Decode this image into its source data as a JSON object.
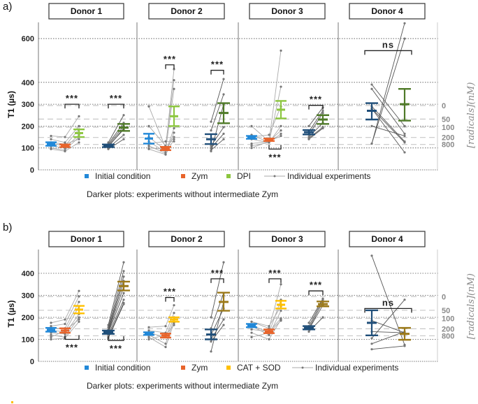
{
  "chart_data": [
    {
      "type": "scatter",
      "panel_label": "a)",
      "ylabel": "T1 (µs)",
      "ylim": [
        0,
        650
      ],
      "yticks": [
        0,
        100,
        200,
        300,
        400,
        600
      ],
      "right_axis_label": "[radicals](nM)",
      "right_axis_ticks": [
        {
          "label": "0",
          "t1": 294
        },
        {
          "label": "50",
          "t1": 232
        },
        {
          "label": "100",
          "t1": 195
        },
        {
          "label": "200",
          "t1": 148
        },
        {
          "label": "800",
          "t1": 116
        }
      ],
      "legend": {
        "initial": "Initial condition",
        "zym": "Zym",
        "treatment": "DPI",
        "individual": "Individual experiments"
      },
      "caption": "Darker plots: experiments without intermediate Zym",
      "colors": {
        "initial": "#2188d8",
        "zym": "#e8642b",
        "treatment": "#8cc63f",
        "initial_dark": "#1f4e79",
        "treatment_dark": "#4f7a28",
        "individual": "#9a9a9a"
      },
      "donors": [
        {
          "name": "Donor 1",
          "groups": [
            {
              "cond": "initial",
              "mean": 118,
              "low": 110,
              "high": 126
            },
            {
              "cond": "zym",
              "mean": 110,
              "low": 104,
              "high": 116
            },
            {
              "cond": "treatment",
              "mean": 168,
              "low": 150,
              "high": 185
            },
            {
              "cond": "initial_dark",
              "mean": 110,
              "low": 104,
              "high": 116
            },
            {
              "cond": "treatment_dark",
              "mean": 193,
              "low": 178,
              "high": 210
            }
          ],
          "light_experiments": [
            [
              155,
              150,
              245
            ],
            [
              140,
              125,
              200
            ],
            [
              120,
              110,
              185
            ],
            [
              110,
              100,
              160
            ],
            [
              100,
              90,
              150
            ],
            [
              95,
              85,
              125
            ],
            [
              125,
              118,
              140
            ]
          ],
          "dark_experiments": [
            [
              125,
              250
            ],
            [
              118,
              215
            ],
            [
              112,
              200
            ],
            [
              108,
              185
            ],
            [
              100,
              160
            ],
            [
              95,
              140
            ],
            [
              105,
              190
            ]
          ],
          "sig": [
            {
              "from": 1,
              "to": 2,
              "at": 300,
              "side": "above",
              "label": "***"
            },
            {
              "from": 3,
              "to": 4,
              "at": 300,
              "side": "above",
              "label": "***"
            }
          ]
        },
        {
          "name": "Donor 2",
          "groups": [
            {
              "cond": "initial",
              "mean": 143,
              "low": 120,
              "high": 165
            },
            {
              "cond": "zym",
              "mean": 98,
              "low": 90,
              "high": 105
            },
            {
              "cond": "treatment",
              "mean": 245,
              "low": 200,
              "high": 290
            },
            {
              "cond": "initial_dark",
              "mean": 140,
              "low": 118,
              "high": 163
            },
            {
              "cond": "treatment_dark",
              "mean": 260,
              "low": 213,
              "high": 305
            }
          ],
          "light_experiments": [
            [
              290,
              100,
              460
            ],
            [
              200,
              110,
              410
            ],
            [
              150,
              90,
              370
            ],
            [
              130,
              80,
              190
            ],
            [
              110,
              75,
              170
            ],
            [
              95,
              70,
              140
            ],
            [
              100,
              95,
              150
            ],
            [
              120,
              130,
              130
            ]
          ],
          "dark_experiments": [
            [
              220,
              415
            ],
            [
              180,
              345
            ],
            [
              110,
              195
            ],
            [
              100,
              165
            ],
            [
              90,
              140
            ],
            [
              85,
              300
            ]
          ],
          "sig": [
            {
              "from": 1,
              "to": 2,
              "at": 480,
              "side": "above",
              "label": "***"
            },
            {
              "from": 3,
              "to": 4,
              "at": 455,
              "side": "above",
              "label": "***"
            }
          ]
        },
        {
          "name": "Donor 3",
          "groups": [
            {
              "cond": "initial",
              "mean": 148,
              "low": 142,
              "high": 155
            },
            {
              "cond": "zym",
              "mean": 137,
              "low": 132,
              "high": 143
            },
            {
              "cond": "treatment",
              "mean": 275,
              "low": 235,
              "high": 315
            },
            {
              "cond": "initial_dark",
              "mean": 172,
              "low": 162,
              "high": 182
            },
            {
              "cond": "treatment_dark",
              "mean": 230,
              "low": 210,
              "high": 250
            }
          ],
          "light_experiments": [
            [
              200,
              130,
              545
            ],
            [
              160,
              125,
              380
            ],
            [
              150,
              160,
              290
            ],
            [
              140,
              125,
              200
            ],
            [
              120,
              130,
              180
            ],
            [
              110,
              125,
              165
            ],
            [
              100,
              130,
              155
            ]
          ],
          "dark_experiments": [
            [
              200,
              285
            ],
            [
              175,
              270
            ],
            [
              160,
              260
            ],
            [
              150,
              215
            ],
            [
              145,
              195
            ],
            [
              140,
              190
            ]
          ],
          "sig": [
            {
              "from": 1,
              "to": 2,
              "at": 95,
              "side": "below",
              "label": "***"
            },
            {
              "from": 3,
              "to": 4,
              "at": 295,
              "side": "above",
              "label": "***"
            }
          ]
        },
        {
          "name": "Donor 4",
          "groups": [
            {
              "cond": "initial_dark",
              "mean": 270,
              "low": 230,
              "high": 305
            },
            {
              "cond": "treatment_dark",
              "mean": 300,
              "low": 225,
              "high": 370
            }
          ],
          "dark_experiments": [
            [
              390,
              200
            ],
            [
              370,
              165
            ],
            [
              290,
              130
            ],
            [
              280,
              125
            ],
            [
              200,
              155
            ],
            [
              120,
              600
            ],
            [
              120,
              670
            ],
            [
              280,
              80
            ]
          ],
          "sig": [
            {
              "from": 0,
              "to": 1,
              "at": 545,
              "side": "above",
              "label": "ns"
            }
          ]
        }
      ]
    },
    {
      "type": "scatter",
      "panel_label": "b)",
      "ylabel": "T1 (µs)",
      "ylim": [
        0,
        460
      ],
      "yticks": [
        0,
        100,
        200,
        300,
        400
      ],
      "right_axis_label": "[radicals](nM)",
      "right_axis_ticks": [
        {
          "label": "0",
          "t1": 294
        },
        {
          "label": "50",
          "t1": 232
        },
        {
          "label": "100",
          "t1": 195
        },
        {
          "label": "200",
          "t1": 148
        },
        {
          "label": "800",
          "t1": 116
        }
      ],
      "legend": {
        "initial": "Initial condition",
        "zym": "Zym",
        "treatment": "CAT + SOD",
        "individual": "Individual experiments"
      },
      "caption": "Darker plots: experiments without intermediate Zym",
      "colors": {
        "initial": "#2188d8",
        "zym": "#e8642b",
        "treatment": "#ffc000",
        "initial_dark": "#1f4e79",
        "treatment_dark": "#9c7a1a",
        "individual": "#9a9a9a"
      },
      "donors": [
        {
          "name": "Donor 1",
          "groups": [
            {
              "cond": "initial",
              "mean": 143,
              "low": 135,
              "high": 152
            },
            {
              "cond": "zym",
              "mean": 140,
              "low": 130,
              "high": 150
            },
            {
              "cond": "treatment",
              "mean": 235,
              "low": 218,
              "high": 252
            },
            {
              "cond": "initial_dark",
              "mean": 133,
              "low": 125,
              "high": 140
            },
            {
              "cond": "treatment_dark",
              "mean": 342,
              "low": 322,
              "high": 362
            }
          ],
          "light_experiments": [
            [
              175,
              190,
              320
            ],
            [
              160,
              170,
              295
            ],
            [
              150,
              150,
              270
            ],
            [
              140,
              135,
              250
            ],
            [
              130,
              125,
              215
            ],
            [
              120,
              110,
              200
            ],
            [
              100,
              105,
              180
            ],
            [
              110,
              140,
              190
            ]
          ],
          "dark_experiments": [
            [
              165,
              450
            ],
            [
              155,
              410
            ],
            [
              145,
              385
            ],
            [
              140,
              365
            ],
            [
              135,
              340
            ],
            [
              130,
              310
            ],
            [
              120,
              280
            ],
            [
              110,
              265
            ],
            [
              105,
              260
            ]
          ],
          "sig": [
            {
              "from": 1,
              "to": 2,
              "at": 100,
              "side": "below",
              "label": "***"
            },
            {
              "from": 3,
              "to": 4,
              "at": 95,
              "side": "below",
              "label": "***"
            }
          ]
        },
        {
          "name": "Donor 2",
          "groups": [
            {
              "cond": "initial",
              "mean": 126,
              "low": 120,
              "high": 132
            },
            {
              "cond": "zym",
              "mean": 117,
              "low": 108,
              "high": 126
            },
            {
              "cond": "treatment",
              "mean": 190,
              "low": 180,
              "high": 200
            },
            {
              "cond": "initial_dark",
              "mean": 122,
              "low": 100,
              "high": 145
            },
            {
              "cond": "treatment_dark",
              "mean": 270,
              "low": 230,
              "high": 312
            }
          ],
          "light_experiments": [
            [
              155,
              160,
              255
            ],
            [
              140,
              130,
              220
            ],
            [
              130,
              110,
              200
            ],
            [
              120,
              80,
              190
            ],
            [
              110,
              65,
              175
            ],
            [
              100,
              120,
              165
            ]
          ],
          "dark_experiments": [
            [
              200,
              450
            ],
            [
              150,
              310
            ],
            [
              120,
              240
            ],
            [
              100,
              190
            ],
            [
              90,
              165
            ],
            [
              45,
              270
            ]
          ],
          "sig": [
            {
              "from": 1,
              "to": 2,
              "at": 290,
              "side": "above",
              "label": "***"
            },
            {
              "from": 3,
              "to": 4,
              "at": 375,
              "side": "above",
              "label": "***"
            }
          ]
        },
        {
          "name": "Donor 3",
          "groups": [
            {
              "cond": "initial",
              "mean": 162,
              "low": 155,
              "high": 170
            },
            {
              "cond": "zym",
              "mean": 136,
              "low": 128,
              "high": 145
            },
            {
              "cond": "treatment",
              "mean": 257,
              "low": 240,
              "high": 275
            },
            {
              "cond": "initial_dark",
              "mean": 152,
              "low": 145,
              "high": 160
            },
            {
              "cond": "treatment_dark",
              "mean": 260,
              "low": 250,
              "high": 272
            }
          ],
          "light_experiments": [
            [
              180,
              150,
              350
            ],
            [
              165,
              130,
              280
            ],
            [
              160,
              120,
              230
            ],
            [
              145,
              135,
              195
            ],
            [
              130,
              100,
              190
            ],
            [
              110,
              130,
              185
            ],
            [
              180,
              160,
              250
            ]
          ],
          "dark_experiments": [
            [
              175,
              285
            ],
            [
              160,
              280
            ],
            [
              150,
              270
            ],
            [
              145,
              255
            ],
            [
              135,
              200
            ]
          ],
          "sig": [
            {
              "from": 1,
              "to": 2,
              "at": 375,
              "side": "above",
              "label": "***"
            },
            {
              "from": 3,
              "to": 4,
              "at": 320,
              "side": "above",
              "label": "***"
            }
          ]
        },
        {
          "name": "Donor 4",
          "groups": [
            {
              "cond": "initial_dark",
              "mean": 175,
              "low": 118,
              "high": 232
            },
            {
              "cond": "treatment_dark",
              "mean": 125,
              "low": 98,
              "high": 152
            },
            {
              "cond": "none",
              "mean": null,
              "low": null,
              "high": null
            }
          ],
          "dark_experiments": [
            [
              480,
              75
            ],
            [
              185,
              130
            ],
            [
              135,
              130
            ],
            [
              105,
              280
            ],
            [
              80,
              135
            ],
            [
              55,
              70
            ]
          ],
          "sig": [
            {
              "from": 0,
              "to": 1,
              "at": 240,
              "side": "above",
              "label": "ns"
            }
          ]
        }
      ]
    }
  ]
}
